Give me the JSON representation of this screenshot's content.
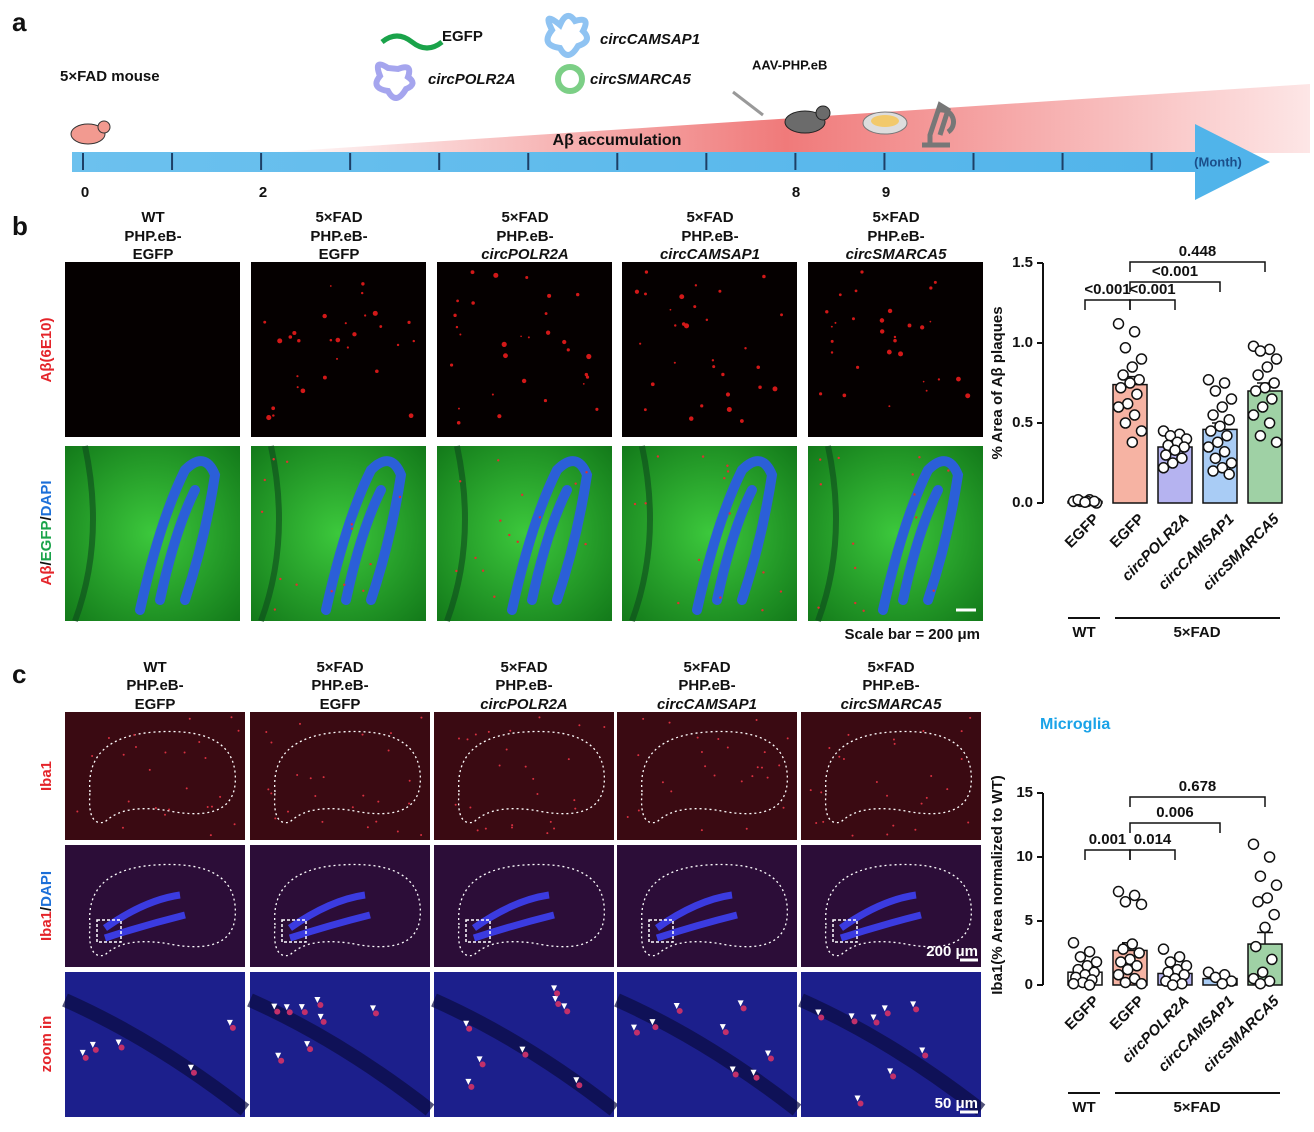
{
  "panel_a": {
    "label": "a",
    "mouse_label": "5×FAD mouse",
    "constructs": [
      "EGFP",
      "circCAMSAP1",
      "circPOLR2A",
      "circSMARCA5"
    ],
    "vector": "AAV-PHP.eB",
    "process": "Aβ accumulation",
    "unit": "(Month)",
    "time_labels": [
      "0",
      "2",
      "8",
      "9"
    ]
  },
  "panel_b": {
    "label": "b",
    "columns": [
      [
        "WT",
        "PHP.eB-",
        "EGFP"
      ],
      [
        "5×FAD",
        "PHP.eB-",
        "EGFP"
      ],
      [
        "5×FAD",
        "PHP.eB-",
        "circPOLR2A"
      ],
      [
        "5×FAD",
        "PHP.eB-",
        "circCAMSAP1"
      ],
      [
        "5×FAD",
        "PHP.eB-",
        "circSMARCA5"
      ]
    ],
    "rows": [
      [
        "Aβ(6E10)"
      ],
      [
        "Aβ",
        "/",
        "EGFP",
        "/",
        "DAPI"
      ]
    ],
    "scale_note": "Scale bar = 200 μm"
  },
  "panel_c": {
    "label": "c",
    "columns": [
      [
        "WT",
        "PHP.eB-",
        "EGFP"
      ],
      [
        "5×FAD",
        "PHP.eB-",
        "EGFP"
      ],
      [
        "5×FAD",
        "PHP.eB-",
        "circPOLR2A"
      ],
      [
        "5×FAD",
        "PHP.eB-",
        "circCAMSAP1"
      ],
      [
        "5×FAD",
        "PHP.eB-",
        "circSMARCA5"
      ]
    ],
    "rows": [
      [
        "Iba1"
      ],
      [
        "Iba1",
        "/",
        "DAPI"
      ],
      [
        "zoom in"
      ]
    ],
    "scale_labels": [
      "200 μm",
      "50 μm"
    ]
  },
  "chart_data": [
    {
      "type": "bar",
      "y_label": "% Area of Aβ plaques",
      "categories": [
        "EGFP",
        "EGFP",
        "circPOLR2A",
        "circCAMSAP1",
        "circSMARCA5"
      ],
      "values": [
        0.01,
        0.74,
        0.35,
        0.46,
        0.7
      ],
      "errors": [
        0.005,
        0.05,
        0.025,
        0.04,
        0.05
      ],
      "colors": [
        "#ffffff",
        "#f6b3a3",
        "#b5b3f0",
        "#a9ccf5",
        "#9fd1a5"
      ],
      "points": [
        [
          0.01,
          0.02,
          0.01,
          0.0,
          0.01,
          0.02,
          0.01,
          0.005
        ],
        [
          1.12,
          1.07,
          0.97,
          0.9,
          0.85,
          0.8,
          0.77,
          0.75,
          0.72,
          0.68,
          0.62,
          0.6,
          0.55,
          0.5,
          0.45,
          0.38
        ],
        [
          0.45,
          0.43,
          0.42,
          0.4,
          0.38,
          0.36,
          0.35,
          0.33,
          0.3,
          0.28,
          0.25,
          0.22
        ],
        [
          0.77,
          0.75,
          0.7,
          0.65,
          0.6,
          0.55,
          0.52,
          0.48,
          0.45,
          0.42,
          0.38,
          0.35,
          0.32,
          0.28,
          0.25,
          0.22,
          0.2,
          0.18
        ],
        [
          0.98,
          0.96,
          0.95,
          0.9,
          0.85,
          0.8,
          0.75,
          0.72,
          0.7,
          0.65,
          0.6,
          0.55,
          0.5,
          0.42,
          0.38
        ]
      ],
      "ylim": [
        0,
        1.5
      ],
      "yticks": [
        {
          "value": 0,
          "label": "0.0"
        },
        {
          "value": 0.5,
          "label": "0.5"
        },
        {
          "value": 1,
          "label": "1.0"
        },
        {
          "value": 1.5,
          "label": "1.5"
        }
      ],
      "comparisons": [
        "<0.001",
        "<0.001",
        "<0.001",
        "0.448"
      ],
      "groups": [
        "WT",
        "5×FAD"
      ]
    },
    {
      "type": "bar",
      "title": "Microglia",
      "y_label": "Iba1(% Area normalized to WT)",
      "categories": [
        "EGFP",
        "EGFP",
        "circPOLR2A",
        "circCAMSAP1",
        "circSMARCA5"
      ],
      "values": [
        1.0,
        2.7,
        0.9,
        0.5,
        3.2
      ],
      "errors": [
        0.3,
        0.6,
        0.3,
        0.15,
        0.9
      ],
      "colors": [
        "#ffffff",
        "#f6b3a3",
        "#b5b3f0",
        "#a9ccf5",
        "#9fd1a5"
      ],
      "points": [
        [
          3.3,
          2.6,
          2.2,
          1.8,
          1.5,
          1.2,
          1.0,
          0.8,
          0.6,
          0.4,
          0.2,
          0.1,
          0.0
        ],
        [
          7.3,
          7.0,
          6.5,
          6.3,
          3.2,
          2.8,
          2.5,
          2.0,
          1.8,
          1.5,
          1.2,
          0.8,
          0.5,
          0.2,
          0.1
        ],
        [
          2.8,
          2.2,
          1.8,
          1.5,
          1.2,
          1.0,
          0.8,
          0.5,
          0.3,
          0.1,
          0.0
        ],
        [
          1.0,
          0.8,
          0.6,
          0.3,
          0.1
        ],
        [
          11.0,
          10.0,
          8.5,
          7.8,
          6.8,
          6.5,
          5.5,
          4.5,
          3.0,
          2.0,
          1.0,
          0.5,
          0.3,
          0.1
        ]
      ],
      "ylim": [
        0,
        15
      ],
      "yticks": [
        0,
        5,
        10,
        15
      ],
      "comparisons": [
        "0.001",
        "0.014",
        "0.006",
        "0.678"
      ],
      "groups": [
        "WT",
        "5×FAD"
      ]
    }
  ]
}
